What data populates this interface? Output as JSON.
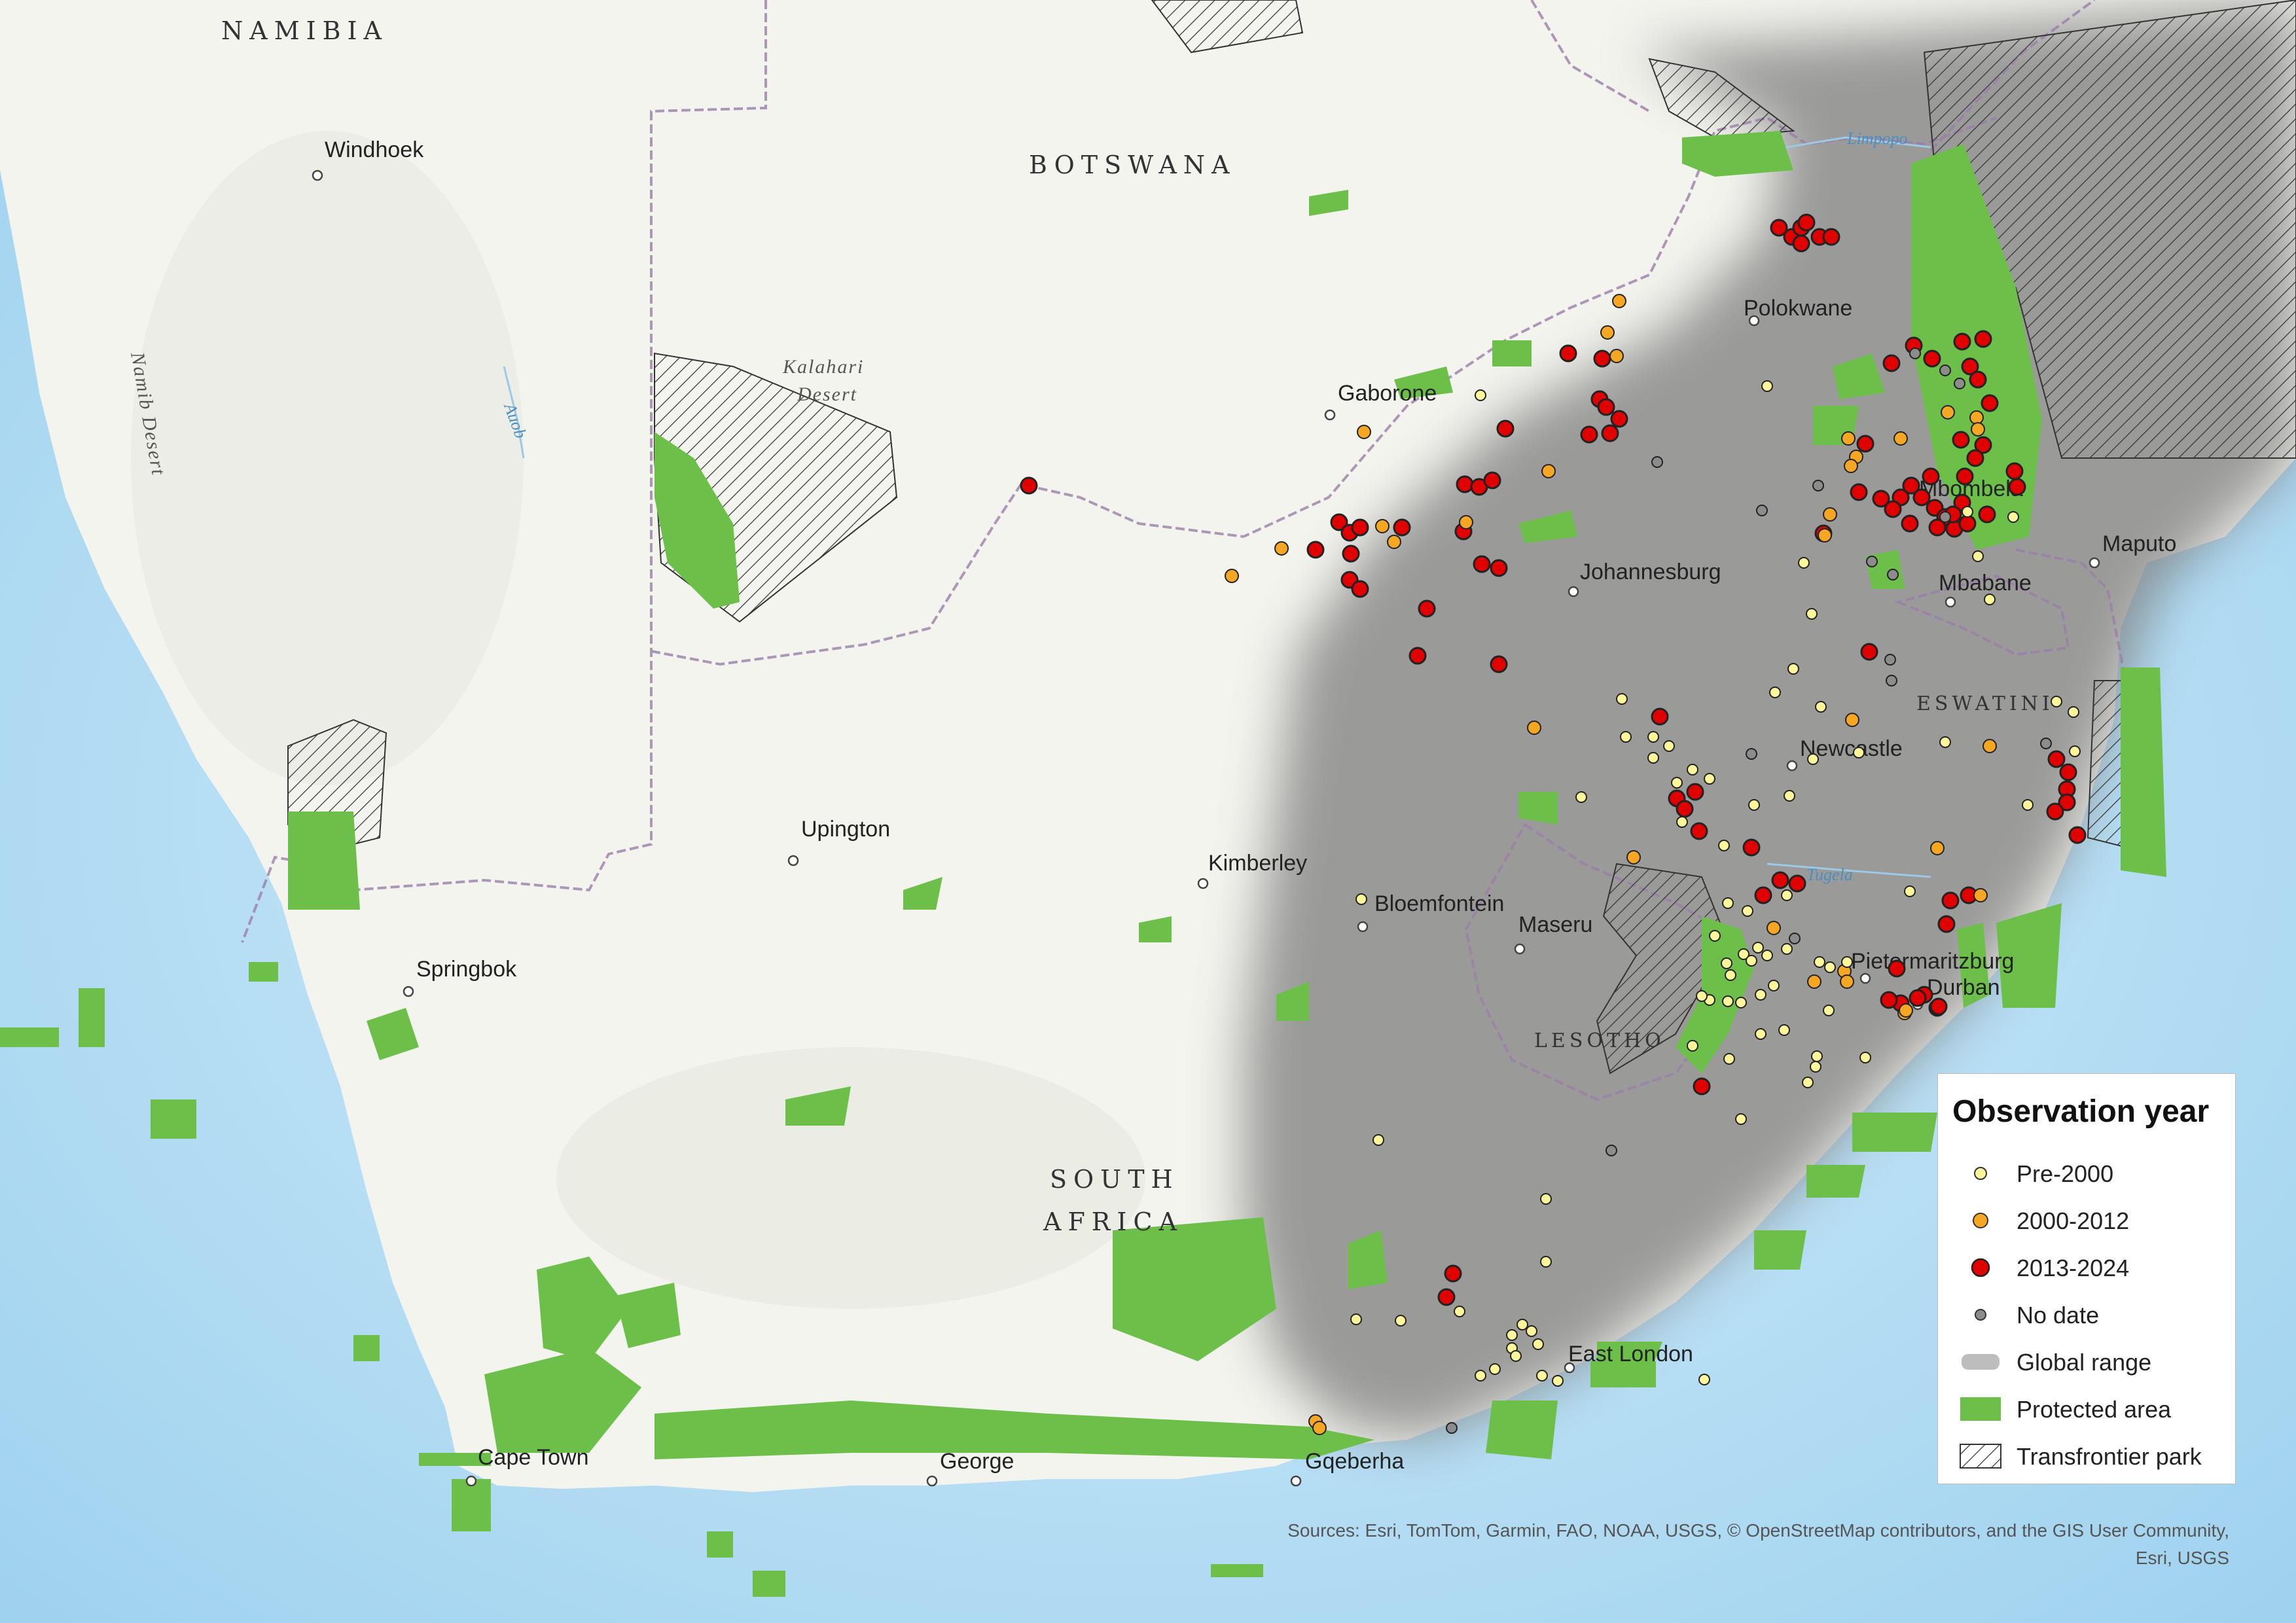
{
  "labels": {
    "countries": [
      "NAMIBIA",
      "BOTSWANA",
      "SOUTH",
      "AFRICA",
      "ESWATINI",
      "LESOTHO"
    ],
    "cities": [
      "Windhoek",
      "Gaborone",
      "Polokwane",
      "Mbombela",
      "Johannesburg",
      "Maputo",
      "Mbabane",
      "Newcastle",
      "Upington",
      "Kimberley",
      "Bloemfontein",
      "Maseru",
      "Pietermaritzburg",
      "Durban",
      "Springbok",
      "East London",
      "Cape Town",
      "George",
      "Gqeberha"
    ],
    "regions": [
      "Namib Desert",
      "Kalahari",
      "Desert"
    ],
    "rivers": [
      "Auob",
      "Limpopo",
      "Tugela"
    ]
  },
  "legend": {
    "title": "Observation year",
    "items": [
      {
        "label": "Pre-2000",
        "symbol": "circle",
        "color": "#fff59a"
      },
      {
        "label": "2000-2012",
        "symbol": "circle",
        "color": "#f5a623"
      },
      {
        "label": "2013-2024",
        "symbol": "circle",
        "color": "#e00000"
      },
      {
        "label": "No date",
        "symbol": "circle",
        "color": "#8c8c8c"
      },
      {
        "label": "Global range",
        "symbol": "patch",
        "color": "#7d7d7d"
      },
      {
        "label": "Protected area",
        "symbol": "patch",
        "color": "#6cc04a"
      },
      {
        "label": "Transfrontier park",
        "symbol": "hatch",
        "color": "#333333"
      }
    ]
  },
  "sources": {
    "line1": "Sources: Esri, TomTom, Garmin, FAO, NOAA, USGS, © OpenStreetMap contributors, and the GIS User Community,",
    "line2": "Esri, USGS"
  },
  "colors": {
    "ocean": "#bfe3f5",
    "land": "#f4f5ef",
    "protected": "#6cc04a",
    "range": "#7d7d7d",
    "border": "#9a7fa8"
  }
}
